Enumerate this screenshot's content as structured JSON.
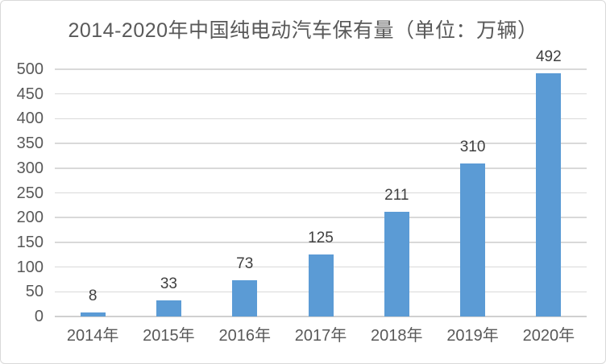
{
  "chart_data": {
    "type": "bar",
    "title": "2014-2020年中国纯电动汽车保有量（单位：万辆）",
    "categories": [
      "2014年",
      "2015年",
      "2016年",
      "2017年",
      "2018年",
      "2019年",
      "2020年"
    ],
    "values": [
      8,
      33,
      73,
      125,
      211,
      310,
      492
    ],
    "xlabel": "",
    "ylabel": "",
    "unit_label": "万辆",
    "ylim": [
      0,
      500
    ],
    "ytick_interval": 50,
    "yticks": [
      0,
      50,
      100,
      150,
      200,
      250,
      300,
      350,
      400,
      450,
      500
    ],
    "grid": true,
    "legend_position": "none",
    "data_labels_shown": true,
    "colors": {
      "bar": "#5B9BD5",
      "title": "#595959",
      "axis_labels": "#595959",
      "data_labels": "#3F3F3F",
      "gridline": "#D9D9D9",
      "card_border": "#D9D9D9",
      "background": "#FFFFFF"
    }
  }
}
